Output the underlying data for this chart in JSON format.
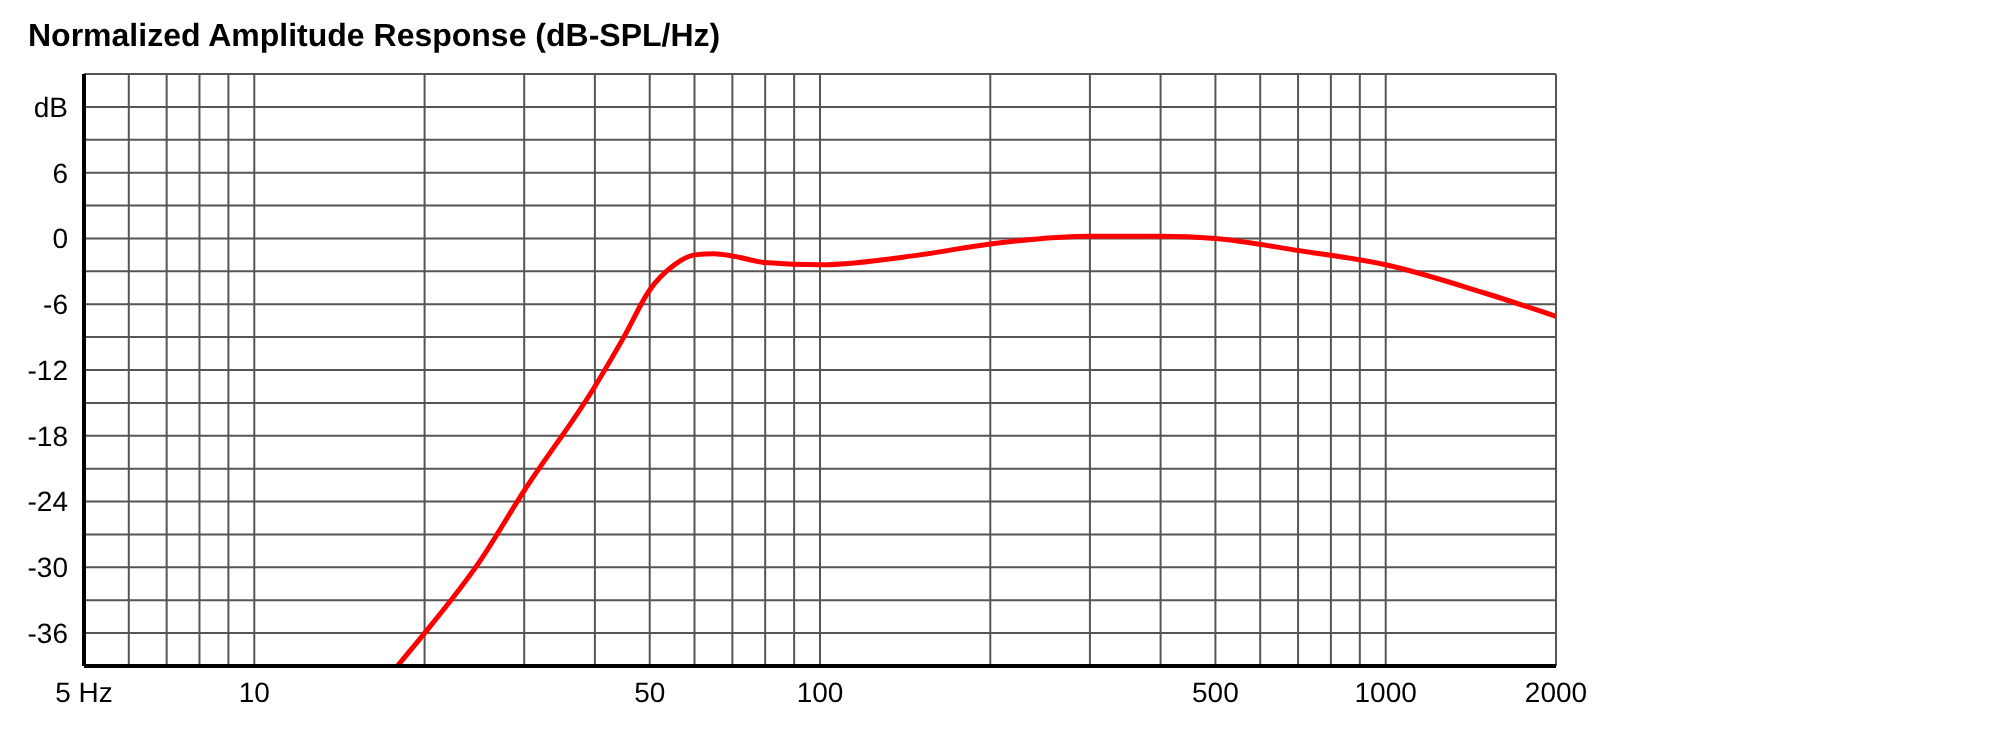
{
  "chart_data": {
    "type": "line",
    "title": "Normalized Amplitude Response (dB-SPL/Hz)",
    "x": [
      17.9,
      20,
      25,
      30,
      40,
      45,
      50,
      55,
      60,
      65,
      70,
      80,
      100,
      150,
      200,
      300,
      400,
      500,
      700,
      1000,
      1500,
      2000
    ],
    "series": [
      {
        "color": "#ff0000",
        "values": [
          -39,
          -36,
          -29.5,
          -23,
          -13.5,
          -9,
          -4.7,
          -2.5,
          -1.5,
          -1.4,
          -1.6,
          -2.2,
          -2.4,
          -1.5,
          -0.5,
          0.2,
          0.2,
          0,
          -1.1,
          -2.4,
          -5,
          -7.1
        ]
      }
    ],
    "log": "x",
    "xlim": [
      5,
      2000
    ],
    "xticks": [
      {
        "value": 5,
        "label": "5 Hz"
      },
      {
        "value": 6,
        "label": null
      },
      {
        "value": 7,
        "label": null
      },
      {
        "value": 8,
        "label": null
      },
      {
        "value": 9,
        "label": null
      },
      10,
      {
        "value": 20,
        "label": null
      },
      {
        "value": 30,
        "label": null
      },
      {
        "value": 40,
        "label": null
      },
      50,
      {
        "value": 60,
        "label": null
      },
      {
        "value": 70,
        "label": null
      },
      {
        "value": 80,
        "label": null
      },
      {
        "value": 90,
        "label": null
      },
      100,
      {
        "value": 200,
        "label": null
      },
      {
        "value": 300,
        "label": null
      },
      {
        "value": 400,
        "label": null
      },
      500,
      {
        "value": 600,
        "label": null
      },
      {
        "value": 700,
        "label": null
      },
      {
        "value": 800,
        "label": null
      },
      {
        "value": 900,
        "label": null
      },
      1000,
      2000
    ],
    "ylim": [
      -39,
      15
    ],
    "yticks": [
      -36,
      {
        "value": -33,
        "label": null
      },
      -30,
      {
        "value": -27,
        "label": null
      },
      -24,
      {
        "value": -21,
        "label": null
      },
      -18,
      {
        "value": -15,
        "label": null
      },
      -12,
      {
        "value": -9,
        "label": null
      },
      -6,
      {
        "value": -3,
        "label": null
      },
      0,
      {
        "value": 3,
        "label": null
      },
      6,
      {
        "value": 9,
        "label": null
      },
      {
        "value": 12,
        "label": "dB"
      }
    ],
    "grid": true,
    "line_style": "solid",
    "marker": "none"
  }
}
